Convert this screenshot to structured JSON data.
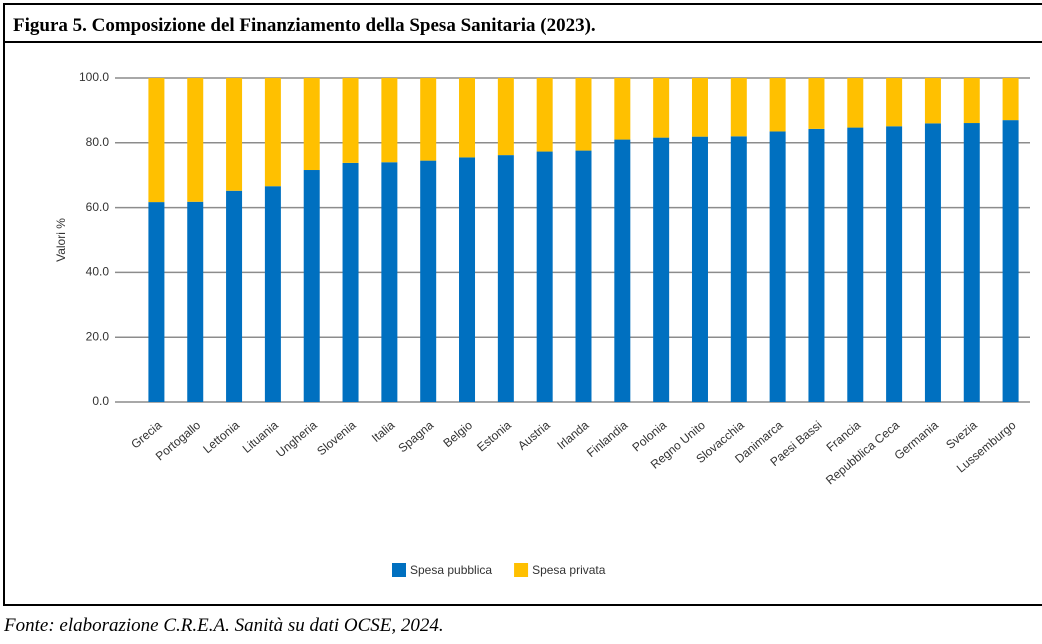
{
  "header": {
    "title": "Figura 5. Composizione del Finanziamento della Spesa Sanitaria (2023)."
  },
  "chart_data": {
    "type": "stacked-bar",
    "y_label": "Valori %",
    "categories": [
      "Grecia",
      "Portogallo",
      "Lettonia",
      "Lituania",
      "Ungheria",
      "Slovenia",
      "Italia",
      "Spagna",
      "Belgio",
      "Estonia",
      "Austria",
      "Irlanda",
      "Finlandia",
      "Polonia",
      "Regno Unito",
      "Slovacchia",
      "Danimarca",
      "Paesi Bassi",
      "Francia",
      "Repubblica Ceca",
      "Germania",
      "Svezia",
      "Lussemburgo"
    ],
    "series": [
      {
        "name": "Spesa pubblica",
        "color": "#0070c0",
        "values": [
          61.7,
          61.8,
          65.2,
          66.6,
          71.6,
          73.8,
          74.0,
          74.5,
          75.5,
          76.2,
          77.3,
          77.6,
          81.0,
          81.6,
          81.9,
          82.0,
          83.5,
          84.3,
          84.7,
          85.1,
          86.0,
          86.1,
          87.0
        ]
      },
      {
        "name": "Spesa privata",
        "color": "#ffc000",
        "values": [
          38.3,
          38.2,
          34.8,
          33.4,
          28.4,
          26.2,
          26.0,
          25.5,
          24.5,
          23.8,
          22.7,
          22.4,
          19.0,
          18.4,
          18.1,
          18.0,
          16.5,
          15.7,
          15.3,
          14.9,
          14.0,
          13.9,
          13.0
        ]
      }
    ],
    "ylim": [
      0,
      100
    ],
    "yticks": [
      {
        "value": 0,
        "label": "0.0"
      },
      {
        "value": 20,
        "label": "20.0"
      },
      {
        "value": 40,
        "label": "40.0"
      },
      {
        "value": 60,
        "label": "60.0"
      },
      {
        "value": 80,
        "label": "80.0"
      },
      {
        "value": 100,
        "label": "100.0"
      }
    ],
    "grid": true
  },
  "footer": {
    "source": "Fonte: elaborazione C.R.E.A. Sanità su dati OCSE, 2024."
  }
}
